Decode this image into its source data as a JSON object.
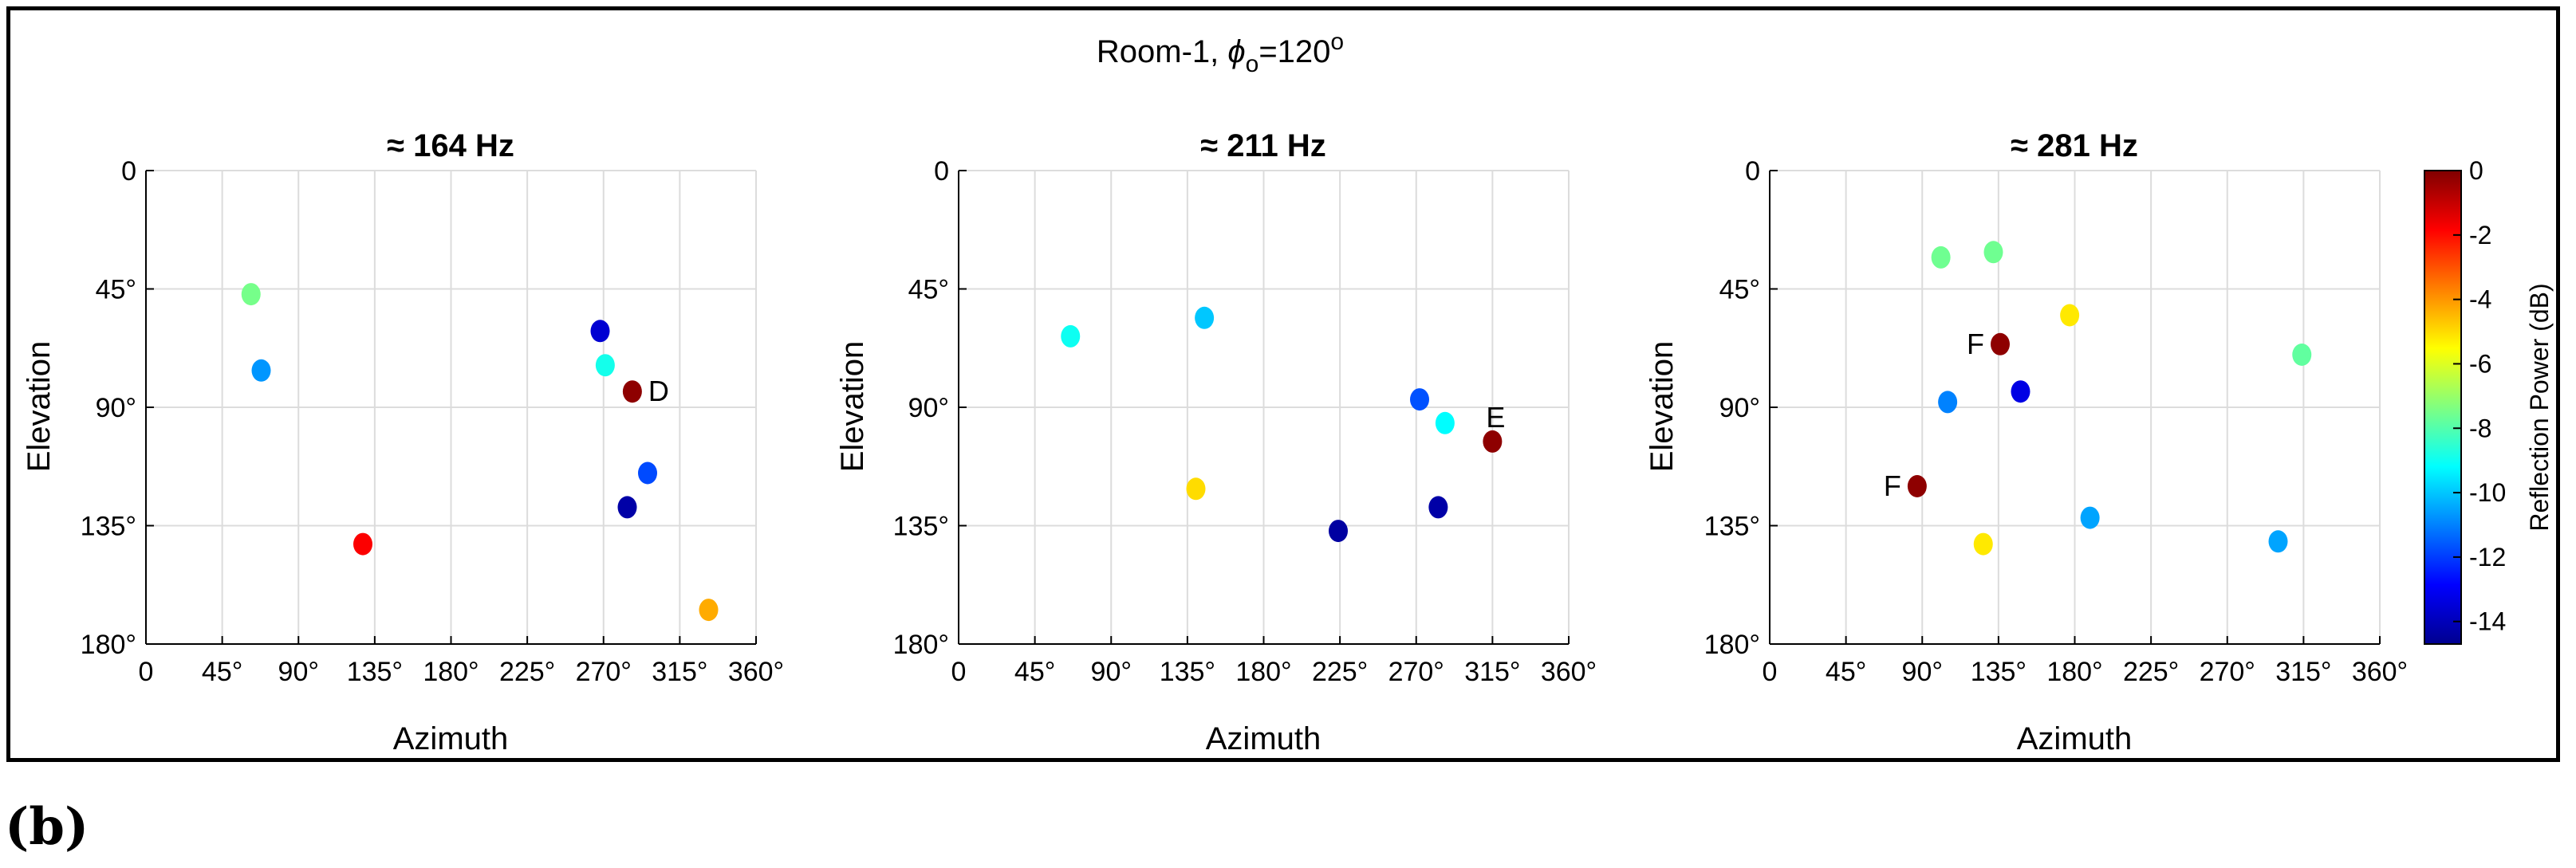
{
  "figure": {
    "super_title_main": "Room-1, ",
    "super_title_phi": "ϕ",
    "super_title_sub": "o",
    "super_title_eq": "=120",
    "super_title_sup": "o",
    "caption": "(b)"
  },
  "colorbar": {
    "label": "Reflection Power (dB)",
    "range": [
      -14.7,
      0
    ],
    "ticks": [
      "0",
      "-2",
      "-4",
      "-6",
      "-8",
      "-10",
      "-12",
      "-14"
    ],
    "tick_values": [
      0,
      -2,
      -4,
      -6,
      -8,
      -10,
      -12,
      -14
    ],
    "colormap": [
      "#00008f",
      "#0000ff",
      "#0080ff",
      "#00ffff",
      "#80ff80",
      "#ffff00",
      "#ff8000",
      "#ff0000",
      "#800000"
    ]
  },
  "chart_data": [
    {
      "type": "scatter",
      "title": "≈ 164 Hz",
      "xlabel": "Azimuth",
      "ylabel": "Elevation",
      "xlim": [
        0,
        360
      ],
      "ylim": [
        180,
        0
      ],
      "xticks": [
        "0",
        "45°",
        "90°",
        "135°",
        "180°",
        "225°",
        "270°",
        "315°",
        "360°"
      ],
      "yticks": [
        "0",
        "45°",
        "90°",
        "135°",
        "180°"
      ],
      "grid": true,
      "points": [
        {
          "x": 62,
          "y": 47,
          "db": -7.5,
          "label": ""
        },
        {
          "x": 68,
          "y": 76,
          "db": -10.7,
          "label": ""
        },
        {
          "x": 128,
          "y": 142,
          "db": -1.8,
          "label": ""
        },
        {
          "x": 268,
          "y": 61,
          "db": -13.6,
          "label": ""
        },
        {
          "x": 271,
          "y": 74,
          "db": -8.9,
          "label": ""
        },
        {
          "x": 287,
          "y": 84,
          "db": -0.2,
          "label": "D"
        },
        {
          "x": 296,
          "y": 115,
          "db": -11.8,
          "label": ""
        },
        {
          "x": 284,
          "y": 128,
          "db": -14.3,
          "label": ""
        },
        {
          "x": 332,
          "y": 167,
          "db": -4.3,
          "label": ""
        }
      ]
    },
    {
      "type": "scatter",
      "title": "≈ 211 Hz",
      "xlabel": "Azimuth",
      "ylabel": "Elevation",
      "xlim": [
        0,
        360
      ],
      "ylim": [
        180,
        0
      ],
      "xticks": [
        "0",
        "45°",
        "90°",
        "135°",
        "180°",
        "225°",
        "270°",
        "315°",
        "360°"
      ],
      "yticks": [
        "0",
        "45°",
        "90°",
        "135°",
        "180°"
      ],
      "grid": true,
      "points": [
        {
          "x": 66,
          "y": 63,
          "db": -9.0,
          "label": ""
        },
        {
          "x": 145,
          "y": 56,
          "db": -10.0,
          "label": ""
        },
        {
          "x": 140,
          "y": 121,
          "db": -5.0,
          "label": ""
        },
        {
          "x": 224,
          "y": 137,
          "db": -14.4,
          "label": ""
        },
        {
          "x": 272,
          "y": 87,
          "db": -11.7,
          "label": ""
        },
        {
          "x": 287,
          "y": 96,
          "db": -9.2,
          "label": ""
        },
        {
          "x": 283,
          "y": 128,
          "db": -14.3,
          "label": ""
        },
        {
          "x": 315,
          "y": 103,
          "db": -0.2,
          "label": "E"
        }
      ]
    },
    {
      "type": "scatter",
      "title": "≈ 281 Hz",
      "xlabel": "Azimuth",
      "ylabel": "Elevation",
      "xlim": [
        0,
        360
      ],
      "ylim": [
        180,
        0
      ],
      "xticks": [
        "0",
        "45°",
        "90°",
        "135°",
        "180°",
        "225°",
        "270°",
        "315°",
        "360°"
      ],
      "yticks": [
        "0",
        "45°",
        "90°",
        "135°",
        "180°"
      ],
      "grid": true,
      "points": [
        {
          "x": 101,
          "y": 33,
          "db": -7.6,
          "label": ""
        },
        {
          "x": 132,
          "y": 31,
          "db": -7.6,
          "label": ""
        },
        {
          "x": 177,
          "y": 55,
          "db": -5.2,
          "label": ""
        },
        {
          "x": 314,
          "y": 70,
          "db": -7.8,
          "label": ""
        },
        {
          "x": 136,
          "y": 66,
          "db": -0.2,
          "label": "F"
        },
        {
          "x": 148,
          "y": 84,
          "db": -13.3,
          "label": ""
        },
        {
          "x": 105,
          "y": 88,
          "db": -11.0,
          "label": ""
        },
        {
          "x": 87,
          "y": 120,
          "db": -0.2,
          "label": "F"
        },
        {
          "x": 189,
          "y": 132,
          "db": -10.5,
          "label": ""
        },
        {
          "x": 126,
          "y": 142,
          "db": -5.2,
          "label": ""
        },
        {
          "x": 300,
          "y": 141,
          "db": -10.5,
          "label": ""
        }
      ]
    }
  ]
}
